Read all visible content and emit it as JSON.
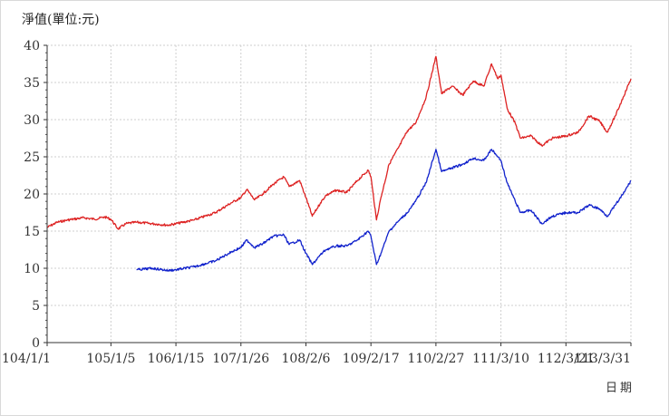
{
  "chart_data": {
    "type": "line",
    "title": "",
    "ylabel": "淨值(單位:元)",
    "xlabel": "日期",
    "ylim": [
      0,
      40
    ],
    "yticks": [
      0,
      5,
      10,
      15,
      20,
      25,
      30,
      35,
      40
    ],
    "xlim": [
      "104/1/1",
      "113/3/31"
    ],
    "xticks": [
      "104/1/1",
      "105/1/5",
      "106/1/15",
      "107/1/26",
      "108/2/6",
      "109/2/17",
      "110/2/27",
      "111/3/10",
      "112/3/21",
      "113/3/31"
    ],
    "grid": true,
    "legend": "none",
    "series": [
      {
        "color": "#dd2222",
        "points": [
          [
            "104/1/1",
            15.5
          ],
          [
            "104/3/1",
            16.2
          ],
          [
            "104/5/1",
            16.5
          ],
          [
            "104/8/1",
            16.8
          ],
          [
            "104/10/1",
            16.6
          ],
          [
            "104/12/1",
            16.9
          ],
          [
            "105/1/5",
            16.6
          ],
          [
            "105/2/15",
            15.3
          ],
          [
            "105/4/1",
            16.0
          ],
          [
            "105/6/1",
            16.2
          ],
          [
            "105/9/1",
            16.0
          ],
          [
            "105/12/1",
            15.8
          ],
          [
            "106/1/15",
            16.0
          ],
          [
            "106/5/1",
            16.5
          ],
          [
            "106/9/1",
            17.5
          ],
          [
            "106/12/1",
            18.8
          ],
          [
            "107/1/26",
            19.5
          ],
          [
            "107/3/1",
            20.6
          ],
          [
            "107/4/15",
            19.2
          ],
          [
            "107/6/1",
            20.0
          ],
          [
            "107/8/1",
            21.3
          ],
          [
            "107/10/1",
            22.3
          ],
          [
            "107/11/1",
            21.0
          ],
          [
            "108/1/1",
            21.8
          ],
          [
            "108/2/6",
            19.5
          ],
          [
            "108/3/15",
            17.0
          ],
          [
            "108/5/1",
            18.8
          ],
          [
            "108/6/1",
            19.8
          ],
          [
            "108/8/1",
            20.5
          ],
          [
            "108/10/1",
            20.2
          ],
          [
            "108/12/1",
            21.8
          ],
          [
            "109/2/1",
            23.2
          ],
          [
            "109/2/17",
            22.3
          ],
          [
            "109/3/20",
            16.5
          ],
          [
            "109/4/15",
            19.5
          ],
          [
            "109/6/1",
            24.0
          ],
          [
            "109/8/1",
            26.5
          ],
          [
            "109/9/15",
            28.5
          ],
          [
            "109/11/1",
            29.5
          ],
          [
            "110/1/1",
            33.0
          ],
          [
            "110/2/27",
            38.5
          ],
          [
            "110/4/1",
            33.5
          ],
          [
            "110/6/1",
            34.5
          ],
          [
            "110/8/1",
            33.3
          ],
          [
            "110/10/1",
            35.2
          ],
          [
            "110/12/1",
            34.5
          ],
          [
            "111/1/15",
            37.5
          ],
          [
            "111/2/20",
            35.5
          ],
          [
            "111/3/10",
            36.0
          ],
          [
            "111/4/15",
            31.5
          ],
          [
            "111/6/1",
            29.5
          ],
          [
            "111/7/1",
            27.5
          ],
          [
            "111/9/1",
            27.8
          ],
          [
            "111/11/1",
            26.5
          ],
          [
            "112/1/1",
            27.5
          ],
          [
            "112/3/21",
            27.8
          ],
          [
            "112/6/1",
            28.3
          ],
          [
            "112/8/1",
            30.5
          ],
          [
            "112/10/1",
            29.8
          ],
          [
            "112/11/15",
            28.3
          ],
          [
            "113/1/1",
            30.5
          ],
          [
            "113/2/15",
            33.0
          ],
          [
            "113/3/31",
            35.5
          ]
        ]
      },
      {
        "color": "#1122cc",
        "points": [
          [
            "105/6/1",
            9.8
          ],
          [
            "105/9/1",
            10.0
          ],
          [
            "105/12/1",
            9.7
          ],
          [
            "106/1/15",
            9.8
          ],
          [
            "106/5/1",
            10.2
          ],
          [
            "106/9/1",
            11.0
          ],
          [
            "106/12/1",
            12.2
          ],
          [
            "107/1/26",
            12.8
          ],
          [
            "107/3/1",
            13.8
          ],
          [
            "107/4/15",
            12.8
          ],
          [
            "107/6/1",
            13.3
          ],
          [
            "107/8/1",
            14.3
          ],
          [
            "107/10/1",
            14.5
          ],
          [
            "107/11/1",
            13.2
          ],
          [
            "108/1/1",
            13.8
          ],
          [
            "108/2/6",
            12.0
          ],
          [
            "108/3/15",
            10.5
          ],
          [
            "108/5/1",
            11.8
          ],
          [
            "108/6/1",
            12.5
          ],
          [
            "108/8/1",
            13.0
          ],
          [
            "108/10/1",
            13.0
          ],
          [
            "108/12/1",
            13.8
          ],
          [
            "109/2/1",
            15.0
          ],
          [
            "109/2/17",
            14.3
          ],
          [
            "109/3/20",
            10.5
          ],
          [
            "109/4/15",
            12.0
          ],
          [
            "109/6/1",
            15.0
          ],
          [
            "109/8/1",
            16.5
          ],
          [
            "109/9/15",
            17.5
          ],
          [
            "109/11/1",
            19.0
          ],
          [
            "110/1/1",
            21.5
          ],
          [
            "110/2/27",
            26.0
          ],
          [
            "110/4/1",
            23.0
          ],
          [
            "110/6/1",
            23.5
          ],
          [
            "110/8/1",
            24.0
          ],
          [
            "110/10/1",
            24.8
          ],
          [
            "110/12/1",
            24.5
          ],
          [
            "111/1/15",
            26.0
          ],
          [
            "111/2/20",
            25.0
          ],
          [
            "111/3/10",
            24.5
          ],
          [
            "111/4/15",
            21.5
          ],
          [
            "111/6/1",
            19.0
          ],
          [
            "111/7/1",
            17.5
          ],
          [
            "111/9/1",
            17.8
          ],
          [
            "111/11/1",
            16.0
          ],
          [
            "112/1/1",
            17.0
          ],
          [
            "112/3/21",
            17.5
          ],
          [
            "112/6/1",
            17.5
          ],
          [
            "112/8/1",
            18.5
          ],
          [
            "112/10/1",
            18.0
          ],
          [
            "112/11/15",
            17.0
          ],
          [
            "113/1/1",
            18.5
          ],
          [
            "113/2/15",
            20.0
          ],
          [
            "113/3/31",
            21.8
          ]
        ]
      }
    ]
  }
}
